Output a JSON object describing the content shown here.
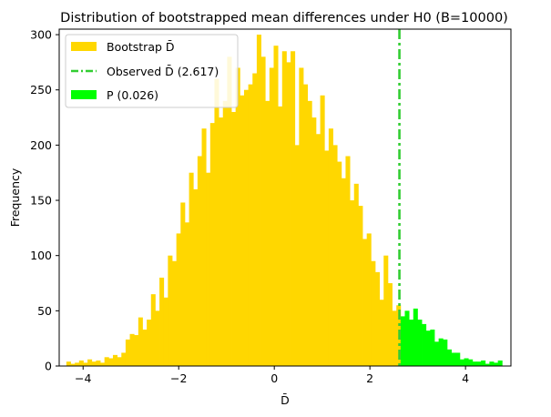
{
  "chart_data": {
    "type": "bar",
    "title": "Distribution of bootstrapped mean differences under H0 (B=10000)",
    "xlabel": "D̄",
    "ylabel": "Frequency",
    "xlim": [
      -4.5,
      4.95
    ],
    "ylim": [
      0,
      305
    ],
    "xticks": [
      -4,
      -2,
      0,
      2,
      4
    ],
    "yticks": [
      0,
      50,
      100,
      150,
      200,
      250,
      300
    ],
    "bin_width": 0.0885,
    "bins_start": -4.35,
    "observed": 2.617,
    "colors": {
      "bootstrap": "#ffd700",
      "observed_line": "#32cd32",
      "pvalue": "#00ff00"
    },
    "counts": [
      4,
      2,
      3,
      5,
      3,
      6,
      4,
      5,
      3,
      8,
      7,
      10,
      8,
      12,
      24,
      29,
      28,
      44,
      33,
      42,
      65,
      50,
      80,
      62,
      100,
      95,
      120,
      148,
      130,
      175,
      160,
      190,
      215,
      175,
      220,
      260,
      225,
      240,
      280,
      230,
      270,
      245,
      250,
      255,
      265,
      300,
      280,
      240,
      270,
      290,
      235,
      285,
      275,
      285,
      200,
      270,
      255,
      240,
      225,
      210,
      245,
      195,
      215,
      200,
      185,
      170,
      190,
      150,
      165,
      145,
      115,
      120,
      95,
      85,
      60,
      100,
      75,
      50,
      55,
      45,
      50,
      42,
      52,
      42,
      38,
      32,
      33,
      22,
      25,
      24,
      15,
      12,
      12,
      6,
      7,
      6,
      4,
      4,
      5,
      2,
      4,
      3,
      5
    ],
    "legend": {
      "position": "upper-left",
      "entries": [
        {
          "label": "Bootstrap D̄",
          "kind": "patch",
          "color": "#ffd700"
        },
        {
          "label": "Observed D̄ (2.617)",
          "kind": "dashdot-line",
          "color": "#32cd32"
        },
        {
          "label": "P (0.026)",
          "kind": "patch",
          "color": "#00ff00"
        }
      ]
    }
  }
}
